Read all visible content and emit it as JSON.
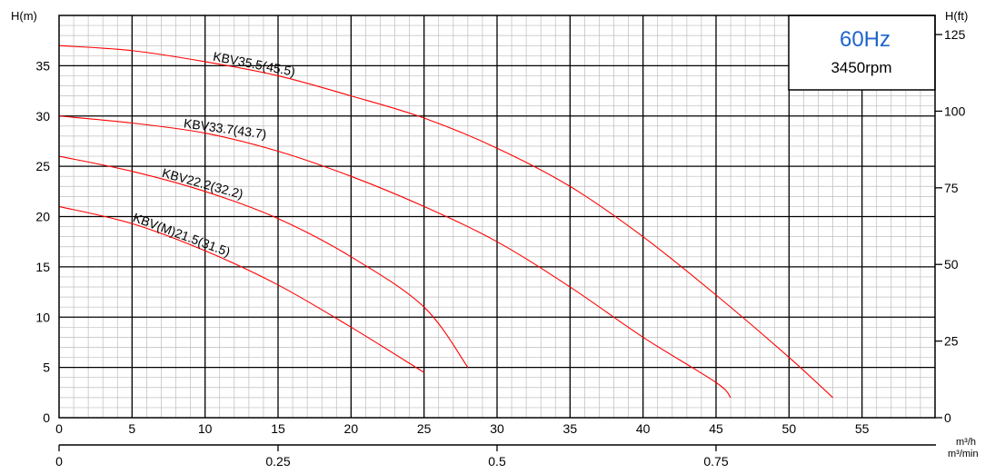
{
  "chart_data": {
    "type": "line",
    "title": "",
    "info": {
      "frequency": "60Hz",
      "speed": "3450rpm"
    },
    "y_left": {
      "label": "H(m)",
      "range": [
        0,
        40
      ],
      "ticks": [
        0,
        5,
        10,
        15,
        20,
        25,
        30,
        35
      ]
    },
    "y_right": {
      "label": "H(ft)",
      "ticks": [
        0,
        25,
        50,
        75,
        100,
        125
      ]
    },
    "x_primary": {
      "label": "m³/h",
      "range": [
        0,
        60
      ],
      "ticks": [
        0,
        5,
        10,
        15,
        20,
        25,
        30,
        35,
        40,
        45,
        50,
        55
      ]
    },
    "x_secondary": {
      "label": "m³/min",
      "ticks": [
        0,
        0.25,
        0.5,
        0.75
      ]
    },
    "grid": true,
    "colors": {
      "curve": "#ff0000",
      "hz_text": "#1f66cc",
      "grid_major": "#000000",
      "grid_minor": "#bdbdbd"
    },
    "series": [
      {
        "name": "KBV35.5(45.5)",
        "points": [
          [
            0,
            37
          ],
          [
            5,
            36.5
          ],
          [
            10,
            35.4
          ],
          [
            15,
            34
          ],
          [
            20,
            32
          ],
          [
            25,
            29.8
          ],
          [
            30,
            26.8
          ],
          [
            35,
            23
          ],
          [
            40,
            18
          ],
          [
            45,
            12.2
          ],
          [
            50,
            6
          ],
          [
            53,
            2
          ]
        ]
      },
      {
        "name": "KBV33.7(43.7)",
        "points": [
          [
            0,
            30
          ],
          [
            5,
            29.3
          ],
          [
            10,
            28.3
          ],
          [
            15,
            26.5
          ],
          [
            20,
            24
          ],
          [
            25,
            21
          ],
          [
            30,
            17.5
          ],
          [
            35,
            13
          ],
          [
            40,
            8
          ],
          [
            45,
            3.5
          ],
          [
            46,
            2
          ]
        ]
      },
      {
        "name": "KBV22.2(32.2)",
        "points": [
          [
            0,
            26
          ],
          [
            5,
            24.5
          ],
          [
            10,
            22.5
          ],
          [
            15,
            19.8
          ],
          [
            20,
            16
          ],
          [
            25,
            11
          ],
          [
            28,
            5
          ]
        ]
      },
      {
        "name": "KBV(M)21.5(31.5)",
        "points": [
          [
            0,
            21
          ],
          [
            5,
            19.3
          ],
          [
            10,
            16.6
          ],
          [
            15,
            13.2
          ],
          [
            20,
            9
          ],
          [
            25,
            4.5
          ]
        ]
      }
    ]
  }
}
